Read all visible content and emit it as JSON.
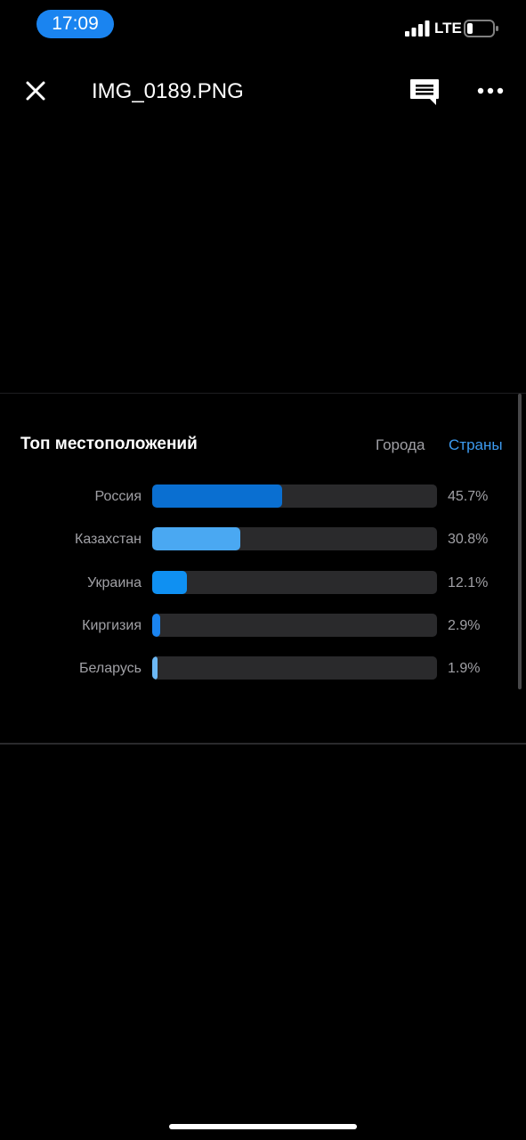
{
  "status_bar": {
    "time": "17:09",
    "network": "LTE",
    "signal_icon": "cellular-signal-icon",
    "battery_icon": "battery-low-icon",
    "accent_color": "#1a84f0"
  },
  "header": {
    "title": "IMG_0189.PNG",
    "close_icon": "close-icon",
    "comment_icon": "comment-icon",
    "more_icon": "more-horizontal-icon"
  },
  "image_content": {
    "title": "Топ местоположений",
    "tabs": [
      {
        "label": "Города",
        "active": false
      },
      {
        "label": "Страны",
        "active": true
      }
    ],
    "active_tab_color": "#3d9bf0",
    "rows": [
      {
        "label": "Россия",
        "value": "45.7%",
        "fraction": 0.457,
        "color": "#0a6fd1"
      },
      {
        "label": "Казахстан",
        "value": "30.8%",
        "fraction": 0.308,
        "color": "#4aa8f2"
      },
      {
        "label": "Украина",
        "value": "12.1%",
        "fraction": 0.121,
        "color": "#0f90f2"
      },
      {
        "label": "Киргизия",
        "value": "2.9%",
        "fraction": 0.029,
        "color": "#1a84f0"
      },
      {
        "label": "Беларусь",
        "value": "1.9%",
        "fraction": 0.019,
        "color": "#6cb8f5"
      }
    ]
  }
}
